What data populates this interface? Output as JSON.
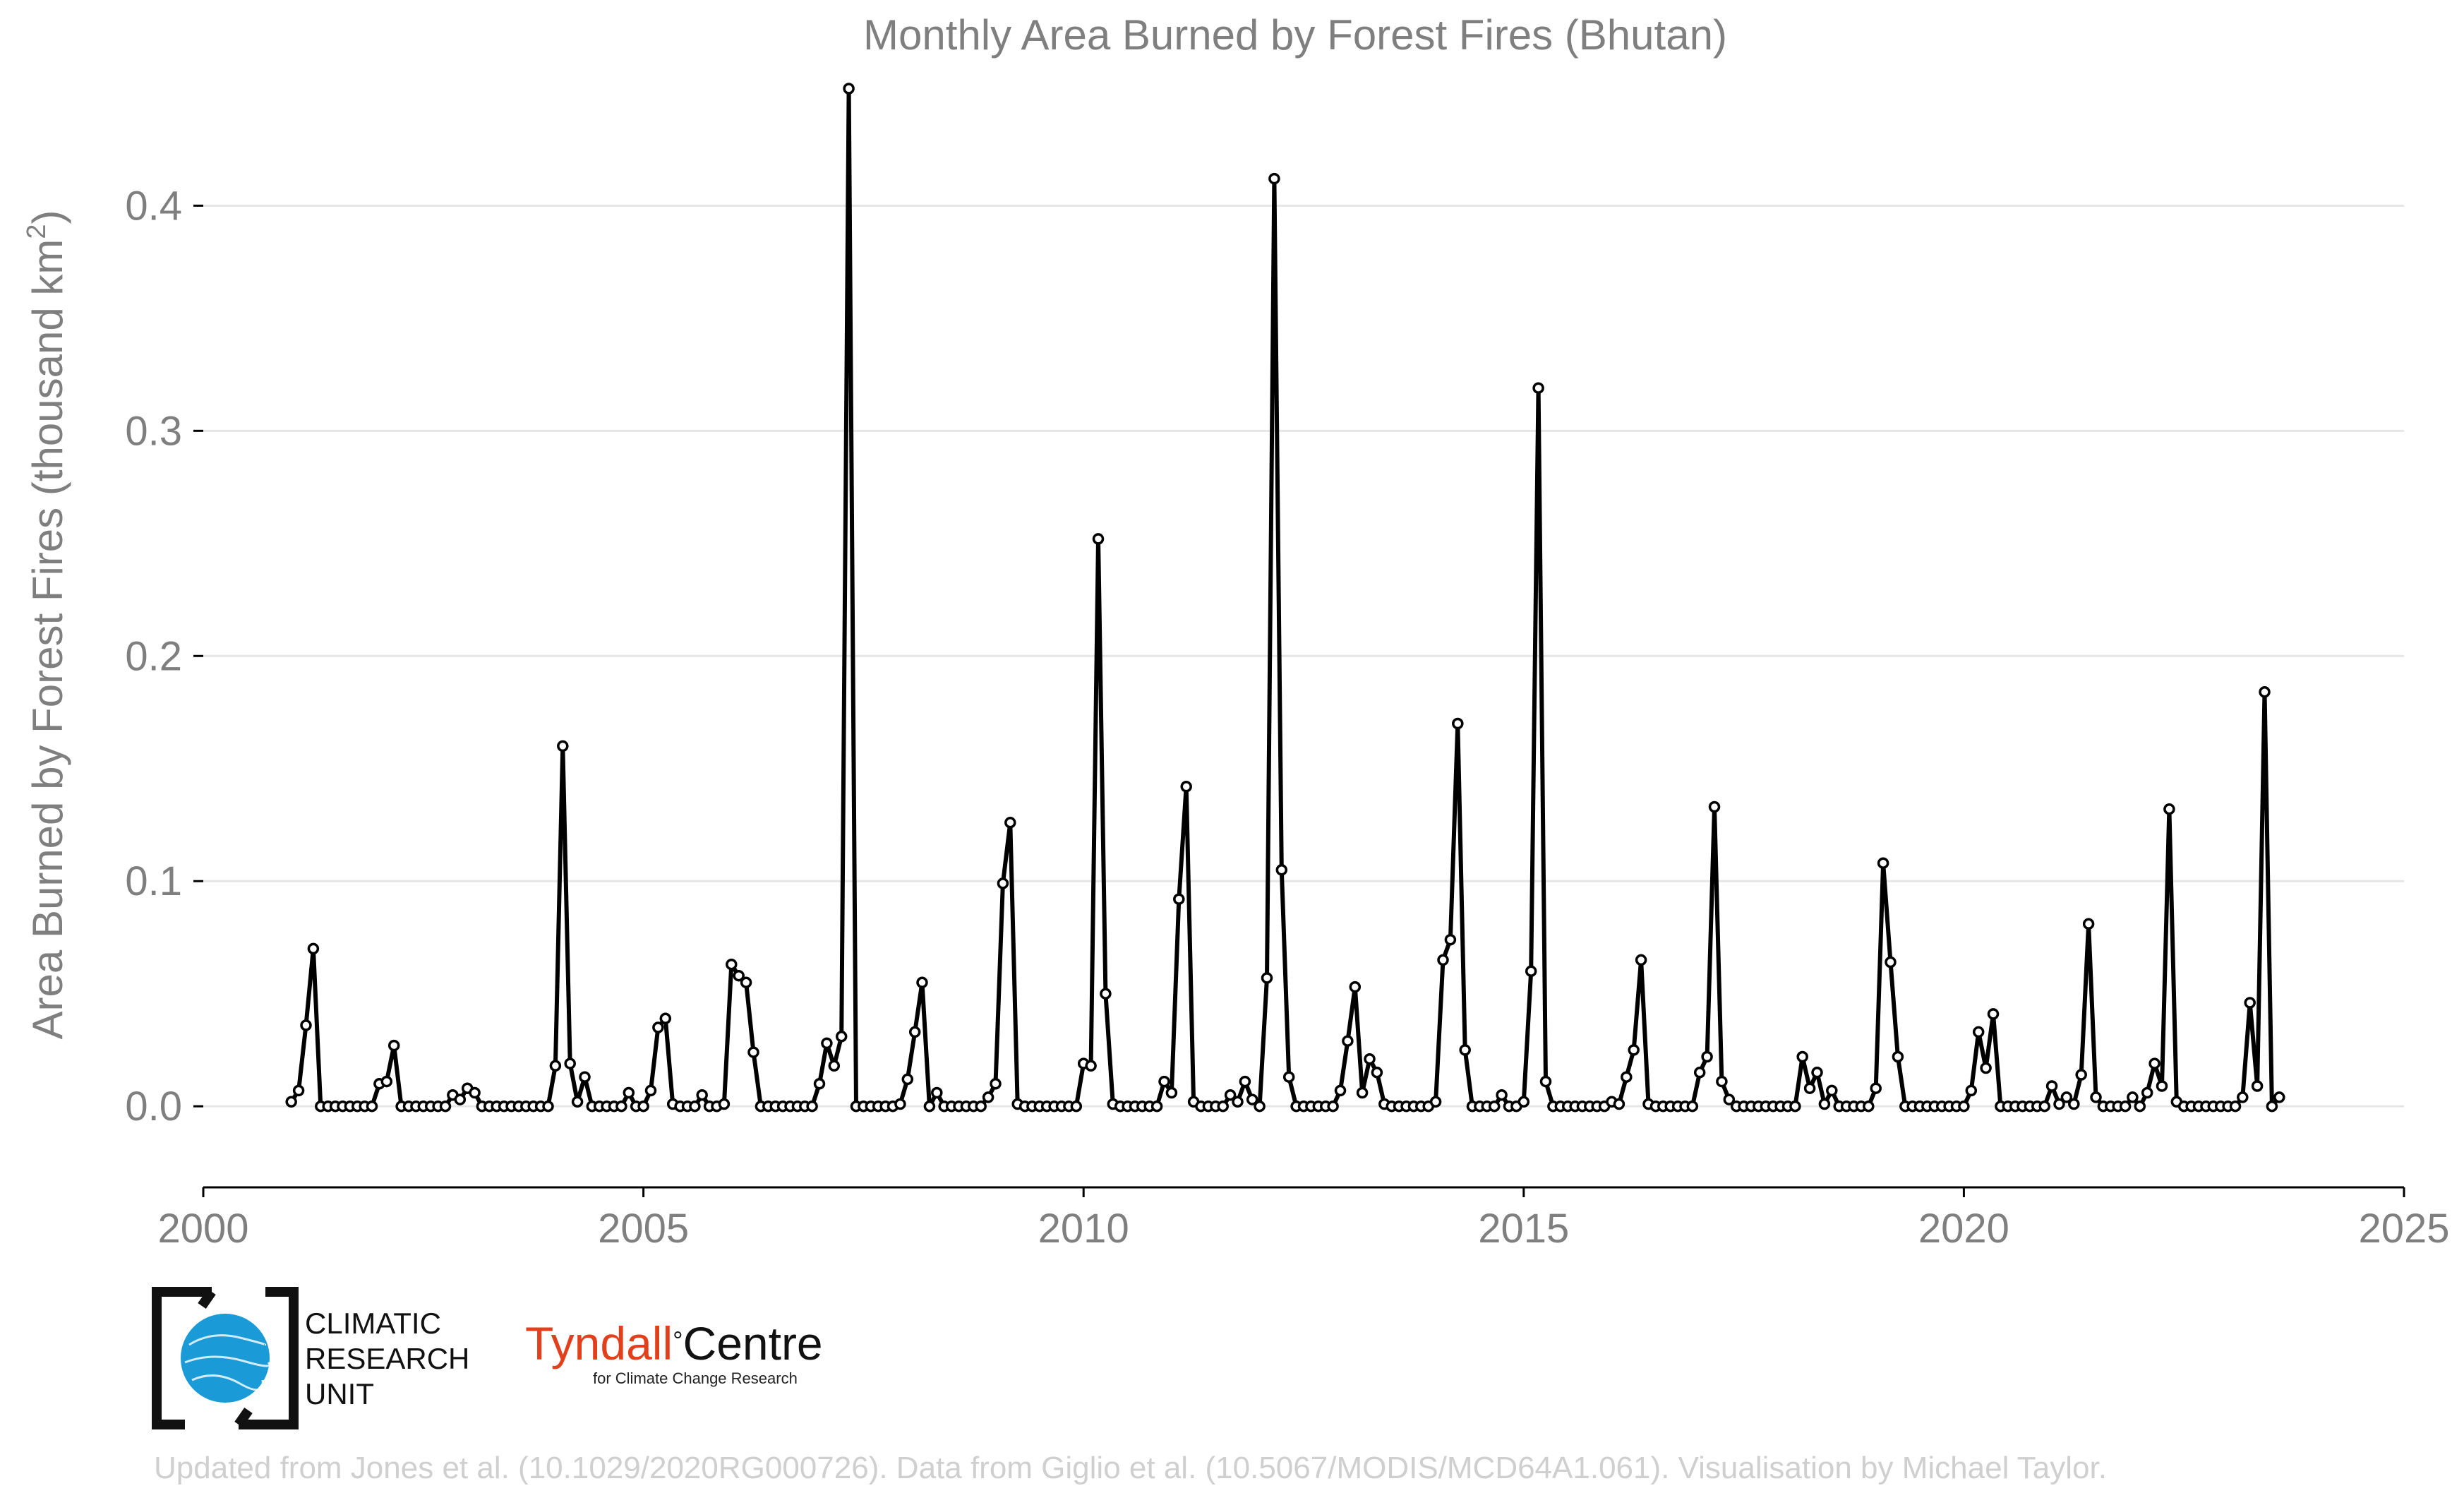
{
  "chart_data": {
    "type": "line",
    "title": "Monthly Area Burned by Forest Fires (Bhutan)",
    "ylabel": "Area Burned by Forest Fires (thousand km",
    "ylabel_sup": "2",
    "ylabel_end": ")",
    "xlabel": "",
    "xlim": [
      2000,
      2025
    ],
    "ylim": [
      -0.036,
      0.46
    ],
    "x_ticks": [
      2000,
      2005,
      2010,
      2015,
      2020,
      2025
    ],
    "x_tick_labels": [
      "2000",
      "2005",
      "2010",
      "2015",
      "2020",
      "2025"
    ],
    "y_ticks": [
      0.0,
      0.1,
      0.2,
      0.3,
      0.4
    ],
    "y_tick_labels": [
      "0.0",
      "0.1",
      "0.2",
      "0.3",
      "0.4"
    ],
    "grid": "horizontal",
    "start_year": 2001,
    "start_month": 1,
    "series": [
      {
        "name": "Area burned",
        "values": [
          0.002,
          0.007,
          0.036,
          0.07,
          0.0,
          0.0,
          0.0,
          0.0,
          0.0,
          0.0,
          0.0,
          0.0,
          0.01,
          0.011,
          0.027,
          0.0,
          0.0,
          0.0,
          0.0,
          0.0,
          0.0,
          0.0,
          0.005,
          0.003,
          0.008,
          0.006,
          0.0,
          0.0,
          0.0,
          0.0,
          0.0,
          0.0,
          0.0,
          0.0,
          0.0,
          0.0,
          0.018,
          0.16,
          0.019,
          0.002,
          0.013,
          0.0,
          0.0,
          0.0,
          0.0,
          0.0,
          0.006,
          0.0,
          0.0,
          0.007,
          0.035,
          0.039,
          0.001,
          0.0,
          0.0,
          0.0,
          0.005,
          0.0,
          0.0,
          0.001,
          0.063,
          0.058,
          0.055,
          0.024,
          0.0,
          0.0,
          0.0,
          0.0,
          0.0,
          0.0,
          0.0,
          0.0,
          0.01,
          0.028,
          0.018,
          0.031,
          0.452,
          0.0,
          0.0,
          0.0,
          0.0,
          0.0,
          0.0,
          0.001,
          0.012,
          0.033,
          0.055,
          0.0,
          0.006,
          0.0,
          0.0,
          0.0,
          0.0,
          0.0,
          0.0,
          0.004,
          0.01,
          0.099,
          0.126,
          0.001,
          0.0,
          0.0,
          0.0,
          0.0,
          0.0,
          0.0,
          0.0,
          0.0,
          0.019,
          0.018,
          0.252,
          0.05,
          0.001,
          0.0,
          0.0,
          0.0,
          0.0,
          0.0,
          0.0,
          0.011,
          0.006,
          0.092,
          0.142,
          0.002,
          0.0,
          0.0,
          0.0,
          0.0,
          0.005,
          0.002,
          0.011,
          0.003,
          0.0,
          0.057,
          0.412,
          0.105,
          0.013,
          0.0,
          0.0,
          0.0,
          0.0,
          0.0,
          0.0,
          0.007,
          0.029,
          0.053,
          0.006,
          0.021,
          0.015,
          0.001,
          0.0,
          0.0,
          0.0,
          0.0,
          0.0,
          0.0,
          0.002,
          0.065,
          0.074,
          0.17,
          0.025,
          0.0,
          0.0,
          0.0,
          0.0,
          0.005,
          0.0,
          0.0,
          0.002,
          0.06,
          0.319,
          0.011,
          0.0,
          0.0,
          0.0,
          0.0,
          0.0,
          0.0,
          0.0,
          0.0,
          0.002,
          0.001,
          0.013,
          0.025,
          0.065,
          0.001,
          0.0,
          0.0,
          0.0,
          0.0,
          0.0,
          0.0,
          0.015,
          0.022,
          0.133,
          0.011,
          0.003,
          0.0,
          0.0,
          0.0,
          0.0,
          0.0,
          0.0,
          0.0,
          0.0,
          0.0,
          0.022,
          0.008,
          0.015,
          0.001,
          0.007,
          0.0,
          0.0,
          0.0,
          0.0,
          0.0,
          0.008,
          0.108,
          0.064,
          0.022,
          0.0,
          0.0,
          0.0,
          0.0,
          0.0,
          0.0,
          0.0,
          0.0,
          0.0,
          0.007,
          0.033,
          0.017,
          0.041,
          0.0,
          0.0,
          0.0,
          0.0,
          0.0,
          0.0,
          0.0,
          0.009,
          0.001,
          0.004,
          0.001,
          0.014,
          0.081,
          0.004,
          0.0,
          0.0,
          0.0,
          0.0,
          0.004,
          0.0,
          0.006,
          0.019,
          0.009,
          0.132,
          0.002,
          0.0,
          0.0,
          0.0,
          0.0,
          0.0,
          0.0,
          0.0,
          0.0,
          0.004,
          0.046,
          0.009,
          0.184,
          0.0,
          0.004
        ]
      }
    ]
  },
  "logos": {
    "cru_line1": "CLIMATIC",
    "cru_line2": "RESEARCH",
    "cru_line3": "UNIT",
    "tyndall_main": "Tyndall",
    "tyndall_degree": "°",
    "tyndall_centre": "Centre",
    "tyndall_sub": "for Climate Change Research"
  },
  "credit": "Updated from Jones et al. (10.1029/2020RG000726). Data from Giglio et al. (10.5067/MODIS/MCD64A1.061). Visualisation by Michael Taylor.",
  "colors": {
    "line": "#000000",
    "marker_fill": "#ffffff",
    "grid": "#e6e6e6",
    "axis": "#000000",
    "text_gray": "#7f7f7f",
    "credit_gray": "#cfcfcf",
    "cru_blue": "#1a9ad6",
    "tyndall_red": "#e2401c"
  }
}
